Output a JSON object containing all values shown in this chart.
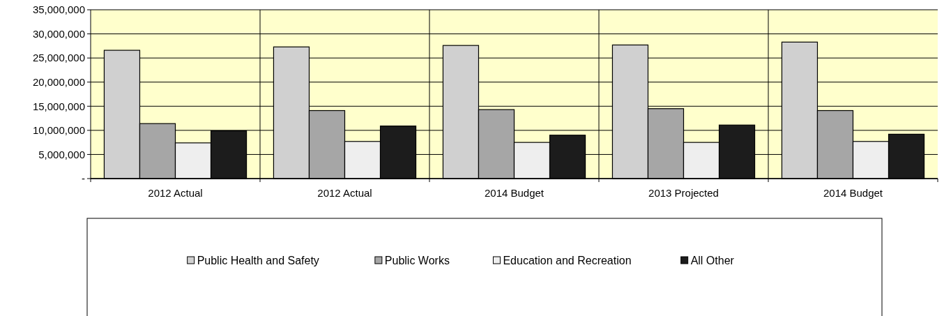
{
  "chart_data": {
    "type": "bar",
    "categories": [
      "2012 Actual",
      "2012 Actual",
      "2014 Budget",
      "2013 Projected",
      "2014 Budget"
    ],
    "series": [
      {
        "name": "Public Health and Safety",
        "color": "#d0d0d0",
        "values": [
          26600000,
          27300000,
          27600000,
          27700000,
          28300000
        ]
      },
      {
        "name": "Public Works",
        "color": "#a6a6a6",
        "values": [
          11400000,
          14100000,
          14300000,
          14500000,
          14100000
        ]
      },
      {
        "name": "Education and Recreation",
        "color": "#eeeeee",
        "values": [
          7400000,
          7700000,
          7500000,
          7500000,
          7700000
        ]
      },
      {
        "name": "All Other",
        "color": "#1c1c1c",
        "values": [
          9900000,
          10900000,
          9000000,
          11100000,
          9200000
        ]
      }
    ],
    "ylim": [
      0,
      35000000
    ],
    "yticks": [
      {
        "value": 0,
        "label": "-"
      },
      {
        "value": 5000000,
        "label": "5,000,000"
      },
      {
        "value": 10000000,
        "label": "10,000,000"
      },
      {
        "value": 15000000,
        "label": "15,000,000"
      },
      {
        "value": 20000000,
        "label": "20,000,000"
      },
      {
        "value": 25000000,
        "label": "25,000,000"
      },
      {
        "value": 30000000,
        "label": "30,000,000"
      },
      {
        "value": 35000000,
        "label": "35,000,000"
      }
    ],
    "grid": true,
    "legend": "bottom"
  }
}
